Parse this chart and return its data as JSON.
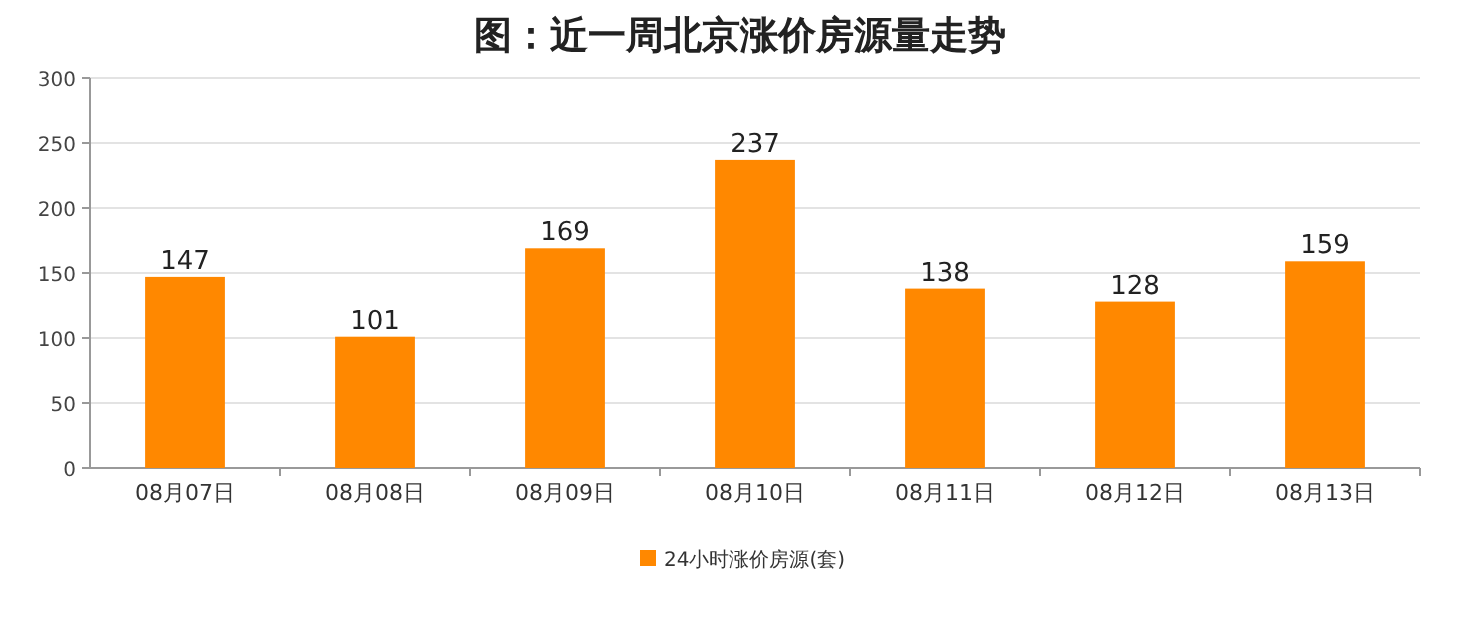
{
  "chart_data": {
    "type": "bar",
    "title": "图：近一周北京涨价房源量走势",
    "categories": [
      "08月07日",
      "08月08日",
      "08月09日",
      "08月10日",
      "08月11日",
      "08月12日",
      "08月13日"
    ],
    "series": [
      {
        "name": "24小时涨价房源(套)",
        "color": "#ff8800",
        "values": [
          147,
          101,
          169,
          237,
          138,
          128,
          159
        ]
      }
    ],
    "ylim": [
      0,
      300
    ],
    "yticks": [
      0,
      50,
      100,
      150,
      200,
      250,
      300
    ],
    "grid": "y",
    "legend": "bottom",
    "data_labels": true
  }
}
